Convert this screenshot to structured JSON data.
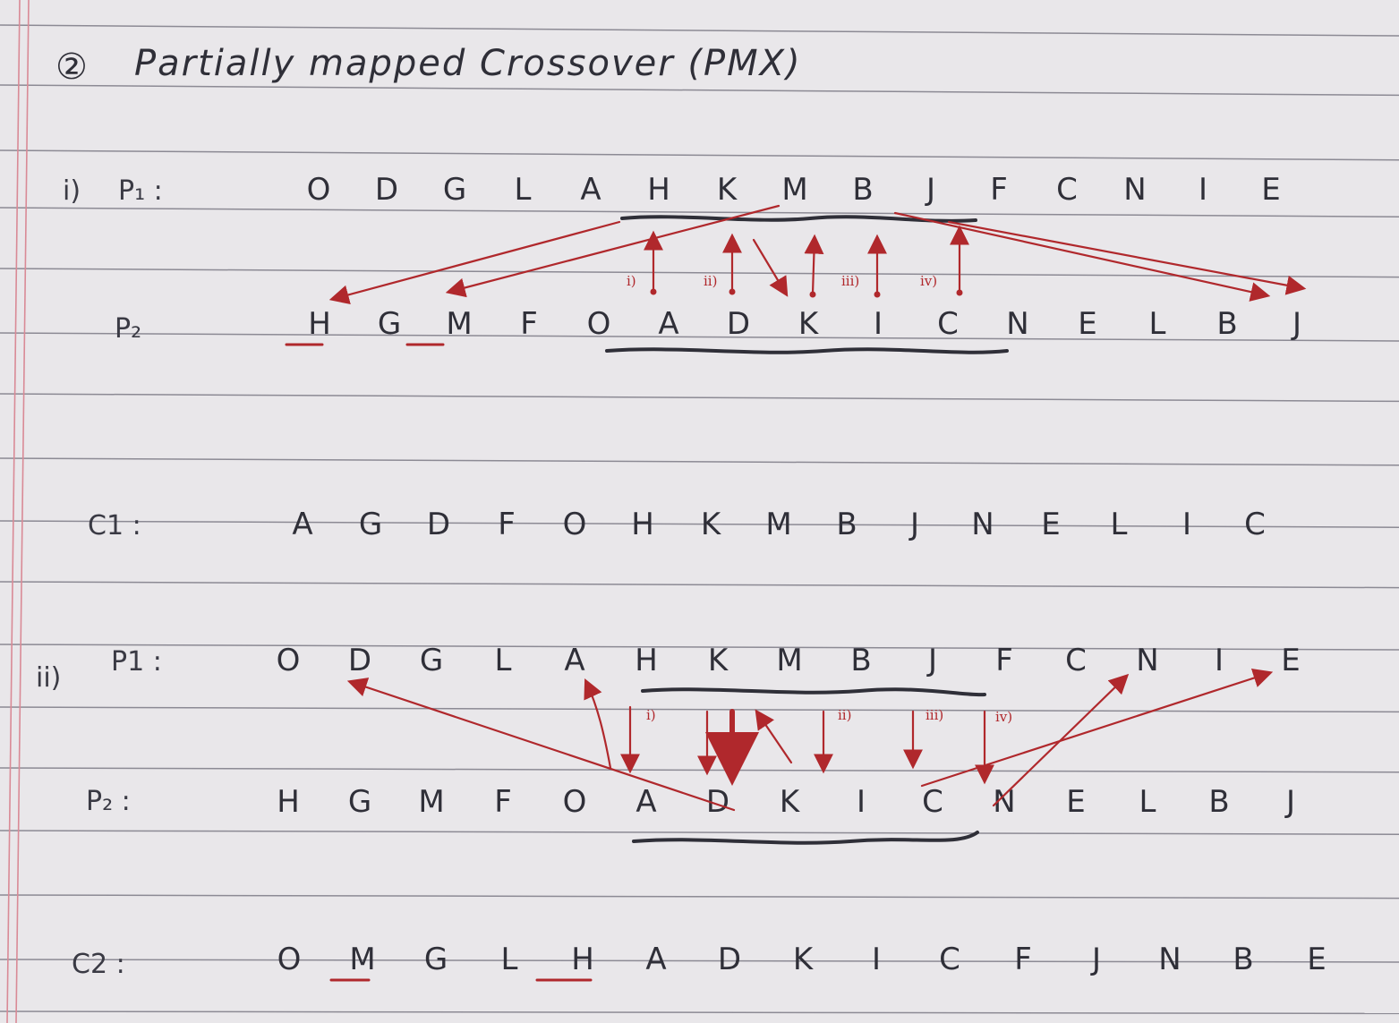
{
  "title": {
    "number": "②",
    "text": "Partially mapped Crossover (PMX)"
  },
  "section_i": {
    "marker": "i)",
    "p1_label": "P₁ :",
    "p1_genes": [
      "O",
      "D",
      "G",
      "L",
      "A",
      "H",
      "K",
      "M",
      "B",
      "J",
      "F",
      "C",
      "N",
      "I",
      "E"
    ],
    "p2_label": "P₂",
    "p2_genes": [
      "H",
      "G",
      "M",
      "F",
      "O",
      "A",
      "D",
      "K",
      "I",
      "C",
      "N",
      "E",
      "L",
      "B",
      "J"
    ],
    "step_labels": [
      "i)",
      "ii)",
      "iii)",
      "iv)"
    ],
    "child_label": "C1 :",
    "child_genes": [
      "A",
      "G",
      "D",
      "F",
      "O",
      "H",
      "K",
      "M",
      "B",
      "J",
      "N",
      "E",
      "L",
      "I",
      "C"
    ]
  },
  "section_ii": {
    "marker": "ii)",
    "p1_label": "P1 :",
    "p1_genes": [
      "O",
      "D",
      "G",
      "L",
      "A",
      "H",
      "K",
      "M",
      "B",
      "J",
      "F",
      "C",
      "N",
      "I",
      "E"
    ],
    "p2_label": "P₂ :",
    "p2_genes": [
      "H",
      "G",
      "M",
      "F",
      "O",
      "A",
      "D",
      "K",
      "I",
      "C",
      "N",
      "E",
      "L",
      "B",
      "J"
    ],
    "step_labels": [
      "i)",
      "ii)",
      "iii)",
      "iv)"
    ],
    "child_label": "C2 :",
    "child_genes": [
      "O",
      "M",
      "G",
      "L",
      "H",
      "A",
      "D",
      "K",
      "I",
      "C",
      "F",
      "J",
      "N",
      "B",
      "E"
    ]
  },
  "colors": {
    "ink": "#2f2f38",
    "red_ink": "#b0282c",
    "margin": "#d98a96",
    "rule": "#8c8a94",
    "paper": "#e9e7ea"
  }
}
